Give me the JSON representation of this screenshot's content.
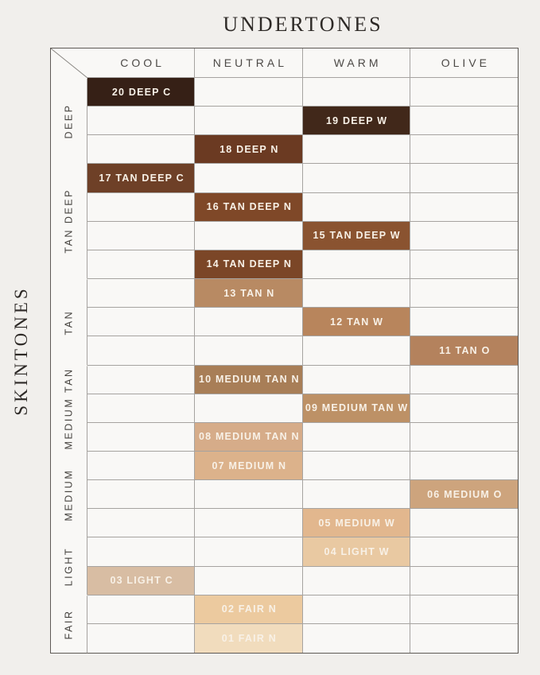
{
  "title": "UNDERTONES",
  "side_title": "SKINTONES",
  "colors": {
    "page_bg": "#f1efec",
    "cell_bg": "#f9f8f6",
    "grid_line": "#a6a3a0",
    "outer_border": "#5e5a56",
    "heading_text": "#2e2a27",
    "column_header_text": "#4c4946",
    "group_label_text": "#44413d",
    "swatch_text": "#f8f1e7"
  },
  "chart_data": {
    "type": "table",
    "title": "UNDERTONES",
    "row_axis_label": "SKINTONES",
    "columns": [
      "COOL",
      "NEUTRAL",
      "WARM",
      "OLIVE"
    ],
    "row_groups": [
      {
        "label": "DEEP",
        "row_count": 3
      },
      {
        "label": "TAN DEEP",
        "row_count": 4
      },
      {
        "label": "TAN",
        "row_count": 3
      },
      {
        "label": "MEDIUM TAN",
        "row_count": 3
      },
      {
        "label": "MEDIUM",
        "row_count": 3
      },
      {
        "label": "LIGHT",
        "row_count": 2
      },
      {
        "label": "FAIR",
        "row_count": 2
      }
    ],
    "rows": [
      {
        "shade": "20 DEEP C",
        "undertone": "COOL",
        "skintone": "DEEP",
        "color": "#362016"
      },
      {
        "shade": "19 DEEP W",
        "undertone": "WARM",
        "skintone": "DEEP",
        "color": "#41281a"
      },
      {
        "shade": "18 DEEP N",
        "undertone": "NEUTRAL",
        "skintone": "DEEP",
        "color": "#6b3a22"
      },
      {
        "shade": "17 TAN DEEP C",
        "undertone": "COOL",
        "skintone": "TAN DEEP",
        "color": "#6e4027"
      },
      {
        "shade": "16 TAN DEEP N",
        "undertone": "NEUTRAL",
        "skintone": "TAN DEEP",
        "color": "#7f4828"
      },
      {
        "shade": "15 TAN DEEP W",
        "undertone": "WARM",
        "skintone": "TAN DEEP",
        "color": "#8a5330"
      },
      {
        "shade": "14 TAN DEEP N",
        "undertone": "NEUTRAL",
        "skintone": "TAN DEEP",
        "color": "#7b4627"
      },
      {
        "shade": "13 TAN N",
        "undertone": "NEUTRAL",
        "skintone": "TAN",
        "color": "#b88a63"
      },
      {
        "shade": "12 TAN W",
        "undertone": "WARM",
        "skintone": "TAN",
        "color": "#b8855c"
      },
      {
        "shade": "11 TAN O",
        "undertone": "OLIVE",
        "skintone": "TAN",
        "color": "#b4825d"
      },
      {
        "shade": "10 MEDIUM TAN N",
        "undertone": "NEUTRAL",
        "skintone": "MEDIUM TAN",
        "color": "#a87e57"
      },
      {
        "shade": "09 MEDIUM TAN W",
        "undertone": "WARM",
        "skintone": "MEDIUM TAN",
        "color": "#bd9166"
      },
      {
        "shade": "08 MEDIUM TAN N",
        "undertone": "NEUTRAL",
        "skintone": "MEDIUM TAN",
        "color": "#d6ac89"
      },
      {
        "shade": "07 MEDIUM N",
        "undertone": "NEUTRAL",
        "skintone": "MEDIUM",
        "color": "#dcb28b"
      },
      {
        "shade": "06 MEDIUM O",
        "undertone": "OLIVE",
        "skintone": "MEDIUM",
        "color": "#cda47d"
      },
      {
        "shade": "05 MEDIUM W",
        "undertone": "WARM",
        "skintone": "MEDIUM",
        "color": "#e2b78e"
      },
      {
        "shade": "04 LIGHT W",
        "undertone": "WARM",
        "skintone": "LIGHT",
        "color": "#e9c9a2"
      },
      {
        "shade": "03 LIGHT C",
        "undertone": "COOL",
        "skintone": "LIGHT",
        "color": "#d8bda3"
      },
      {
        "shade": "02 FAIR N",
        "undertone": "NEUTRAL",
        "skintone": "FAIR",
        "color": "#ecca9f"
      },
      {
        "shade": "01 FAIR N",
        "undertone": "NEUTRAL",
        "skintone": "FAIR",
        "color": "#f1dcbd"
      }
    ],
    "layout": {
      "grid": true,
      "legend": "none",
      "column_header_position": "top",
      "row_groups_position": "left"
    }
  }
}
